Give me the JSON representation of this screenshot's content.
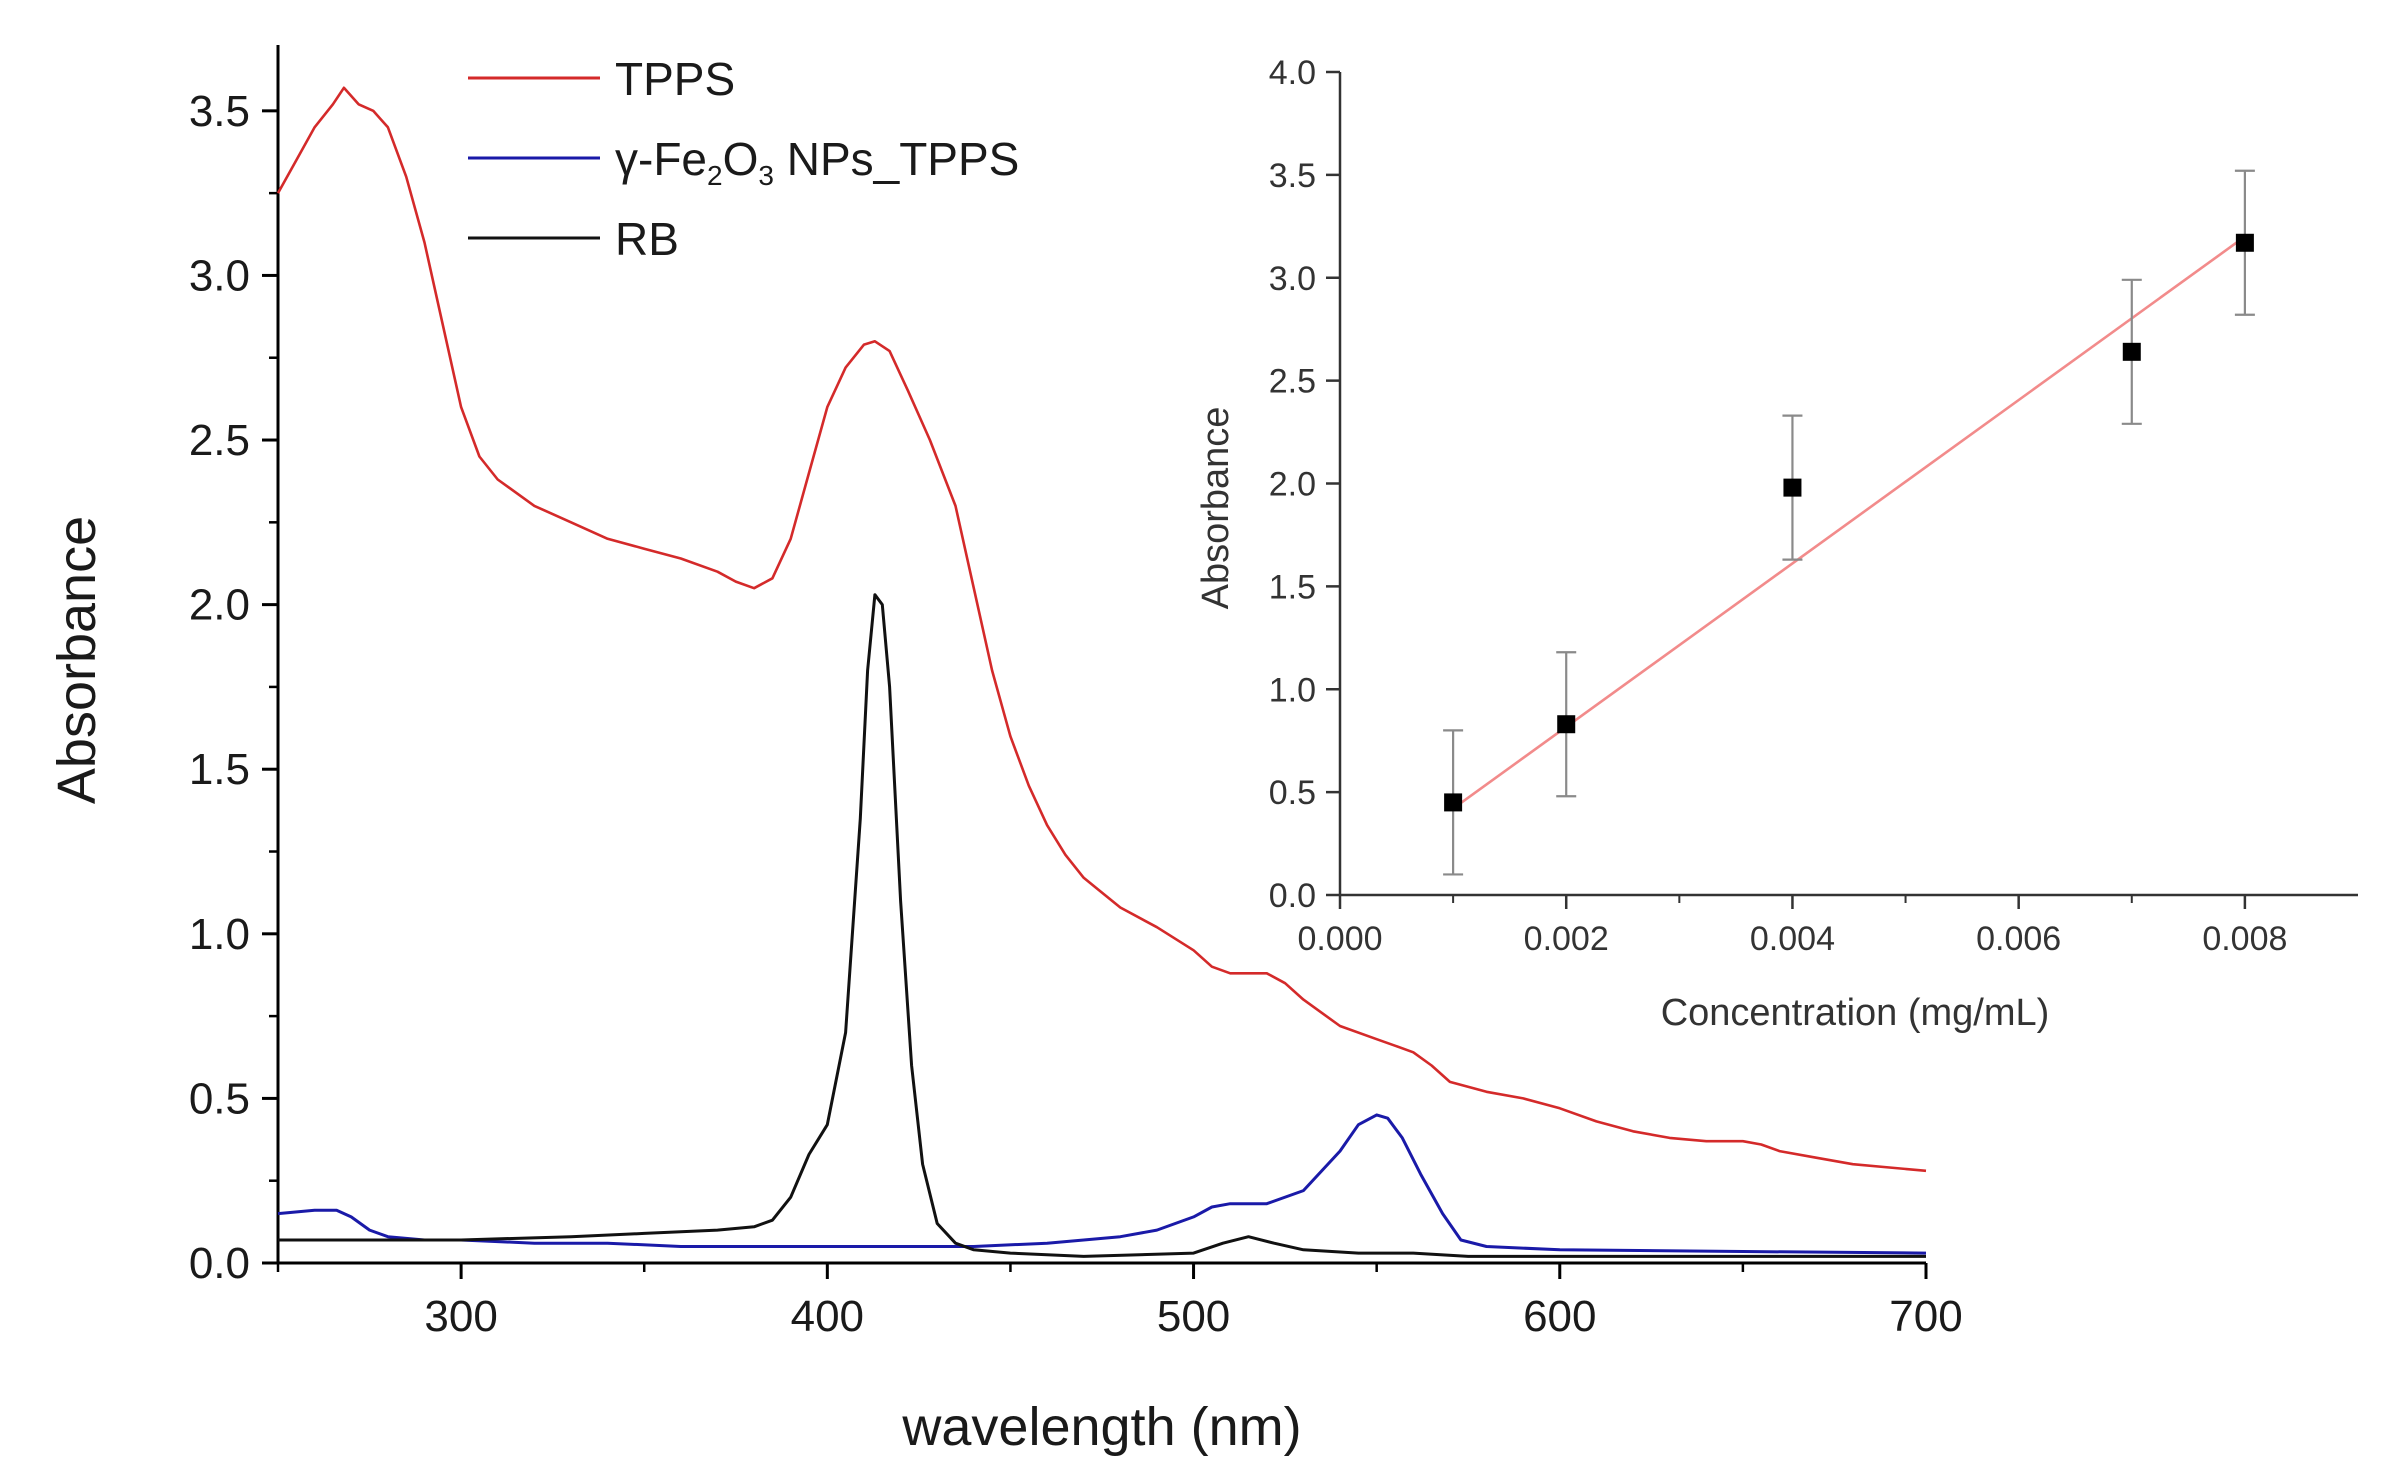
{
  "chart_data": [
    {
      "type": "line",
      "id": "main-spectrum",
      "xlabel": "wavelength (nm)",
      "ylabel": "Absorbance",
      "xlim": [
        250,
        700
      ],
      "ylim": [
        0.0,
        3.7
      ],
      "xticks": [
        300,
        400,
        500,
        600,
        700
      ],
      "xtick_labels": [
        "300",
        "400",
        "500",
        "600",
        "700"
      ],
      "yticks": [
        0.0,
        0.5,
        1.0,
        1.5,
        2.0,
        2.5,
        3.0,
        3.5
      ],
      "ytick_labels": [
        "0.0",
        "0.5",
        "1.0",
        "1.5",
        "2.0",
        "2.5",
        "3.0",
        "3.5"
      ],
      "legend_position": "top-center",
      "series": [
        {
          "name": "TPPS",
          "color": "#d42a2a",
          "points": [
            [
              250,
              3.25
            ],
            [
              255,
              3.35
            ],
            [
              260,
              3.45
            ],
            [
              265,
              3.52
            ],
            [
              268,
              3.57
            ],
            [
              272,
              3.52
            ],
            [
              276,
              3.5
            ],
            [
              280,
              3.45
            ],
            [
              285,
              3.3
            ],
            [
              290,
              3.1
            ],
            [
              295,
              2.85
            ],
            [
              300,
              2.6
            ],
            [
              305,
              2.45
            ],
            [
              310,
              2.38
            ],
            [
              320,
              2.3
            ],
            [
              330,
              2.25
            ],
            [
              340,
              2.2
            ],
            [
              350,
              2.17
            ],
            [
              360,
              2.14
            ],
            [
              370,
              2.1
            ],
            [
              375,
              2.07
            ],
            [
              380,
              2.05
            ],
            [
              385,
              2.08
            ],
            [
              390,
              2.2
            ],
            [
              395,
              2.4
            ],
            [
              400,
              2.6
            ],
            [
              405,
              2.72
            ],
            [
              410,
              2.79
            ],
            [
              413,
              2.8
            ],
            [
              417,
              2.77
            ],
            [
              422,
              2.65
            ],
            [
              428,
              2.5
            ],
            [
              435,
              2.3
            ],
            [
              440,
              2.05
            ],
            [
              445,
              1.8
            ],
            [
              450,
              1.6
            ],
            [
              455,
              1.45
            ],
            [
              460,
              1.33
            ],
            [
              465,
              1.24
            ],
            [
              470,
              1.17
            ],
            [
              480,
              1.08
            ],
            [
              490,
              1.02
            ],
            [
              500,
              0.95
            ],
            [
              505,
              0.9
            ],
            [
              510,
              0.88
            ],
            [
              515,
              0.88
            ],
            [
              520,
              0.88
            ],
            [
              525,
              0.85
            ],
            [
              530,
              0.8
            ],
            [
              540,
              0.72
            ],
            [
              550,
              0.68
            ],
            [
              555,
              0.66
            ],
            [
              560,
              0.64
            ],
            [
              565,
              0.6
            ],
            [
              570,
              0.55
            ],
            [
              580,
              0.52
            ],
            [
              590,
              0.5
            ],
            [
              600,
              0.47
            ],
            [
              610,
              0.43
            ],
            [
              620,
              0.4
            ],
            [
              630,
              0.38
            ],
            [
              640,
              0.37
            ],
            [
              650,
              0.37
            ],
            [
              655,
              0.36
            ],
            [
              660,
              0.34
            ],
            [
              670,
              0.32
            ],
            [
              680,
              0.3
            ],
            [
              690,
              0.29
            ],
            [
              700,
              0.28
            ]
          ]
        },
        {
          "name": "γ-Fe2O3 NPs_TPPS",
          "color": "#1a1aa8",
          "points": [
            [
              250,
              0.15
            ],
            [
              260,
              0.16
            ],
            [
              266,
              0.16
            ],
            [
              270,
              0.14
            ],
            [
              275,
              0.1
            ],
            [
              280,
              0.08
            ],
            [
              290,
              0.07
            ],
            [
              300,
              0.07
            ],
            [
              320,
              0.06
            ],
            [
              340,
              0.06
            ],
            [
              360,
              0.05
            ],
            [
              380,
              0.05
            ],
            [
              400,
              0.05
            ],
            [
              420,
              0.05
            ],
            [
              440,
              0.05
            ],
            [
              460,
              0.06
            ],
            [
              480,
              0.08
            ],
            [
              490,
              0.1
            ],
            [
              500,
              0.14
            ],
            [
              505,
              0.17
            ],
            [
              510,
              0.18
            ],
            [
              520,
              0.18
            ],
            [
              530,
              0.22
            ],
            [
              540,
              0.34
            ],
            [
              545,
              0.42
            ],
            [
              550,
              0.45
            ],
            [
              553,
              0.44
            ],
            [
              557,
              0.38
            ],
            [
              562,
              0.27
            ],
            [
              568,
              0.15
            ],
            [
              573,
              0.07
            ],
            [
              580,
              0.05
            ],
            [
              600,
              0.04
            ],
            [
              650,
              0.035
            ],
            [
              700,
              0.03
            ]
          ]
        },
        {
          "name": "RB",
          "color": "#111111",
          "points": [
            [
              250,
              0.07
            ],
            [
              280,
              0.07
            ],
            [
              300,
              0.07
            ],
            [
              330,
              0.08
            ],
            [
              350,
              0.09
            ],
            [
              370,
              0.1
            ],
            [
              380,
              0.11
            ],
            [
              385,
              0.13
            ],
            [
              390,
              0.2
            ],
            [
              395,
              0.33
            ],
            [
              400,
              0.42
            ],
            [
              405,
              0.7
            ],
            [
              409,
              1.35
            ],
            [
              411,
              1.8
            ],
            [
              413,
              2.03
            ],
            [
              415,
              2.0
            ],
            [
              417,
              1.75
            ],
            [
              420,
              1.1
            ],
            [
              423,
              0.6
            ],
            [
              426,
              0.3
            ],
            [
              430,
              0.12
            ],
            [
              435,
              0.06
            ],
            [
              440,
              0.04
            ],
            [
              450,
              0.03
            ],
            [
              470,
              0.02
            ],
            [
              500,
              0.03
            ],
            [
              508,
              0.06
            ],
            [
              515,
              0.08
            ],
            [
              522,
              0.06
            ],
            [
              530,
              0.04
            ],
            [
              545,
              0.03
            ],
            [
              560,
              0.03
            ],
            [
              575,
              0.02
            ],
            [
              600,
              0.02
            ],
            [
              650,
              0.02
            ],
            [
              700,
              0.02
            ]
          ]
        }
      ]
    },
    {
      "type": "scatter",
      "id": "inset-calibration",
      "xlabel": "Concentration (mg/mL)",
      "ylabel": "Absorbance",
      "xlim": [
        0.0,
        0.009
      ],
      "ylim": [
        0.0,
        4.0
      ],
      "xticks": [
        0.0,
        0.002,
        0.004,
        0.006,
        0.008
      ],
      "xtick_labels": [
        "0.000",
        "0.002",
        "0.004",
        "0.006",
        "0.008"
      ],
      "yticks": [
        0.0,
        0.5,
        1.0,
        1.5,
        2.0,
        2.5,
        3.0,
        3.5,
        4.0
      ],
      "ytick_labels": [
        "0.0",
        "0.5",
        "1.0",
        "1.5",
        "2.0",
        "2.5",
        "3.0",
        "3.5",
        "4.0"
      ],
      "x": [
        0.001,
        0.002,
        0.004,
        0.007,
        0.008
      ],
      "y": [
        0.45,
        0.83,
        1.98,
        2.64,
        3.17
      ],
      "error": [
        0.35,
        0.35,
        0.35,
        0.35,
        0.35
      ],
      "marker_color": "#000000",
      "errorbar_color": "#8a8a8a",
      "fit_line": {
        "x": [
          0.001,
          0.008
        ],
        "y": [
          0.42,
          3.2
        ],
        "color": "#f28b8b"
      }
    }
  ]
}
